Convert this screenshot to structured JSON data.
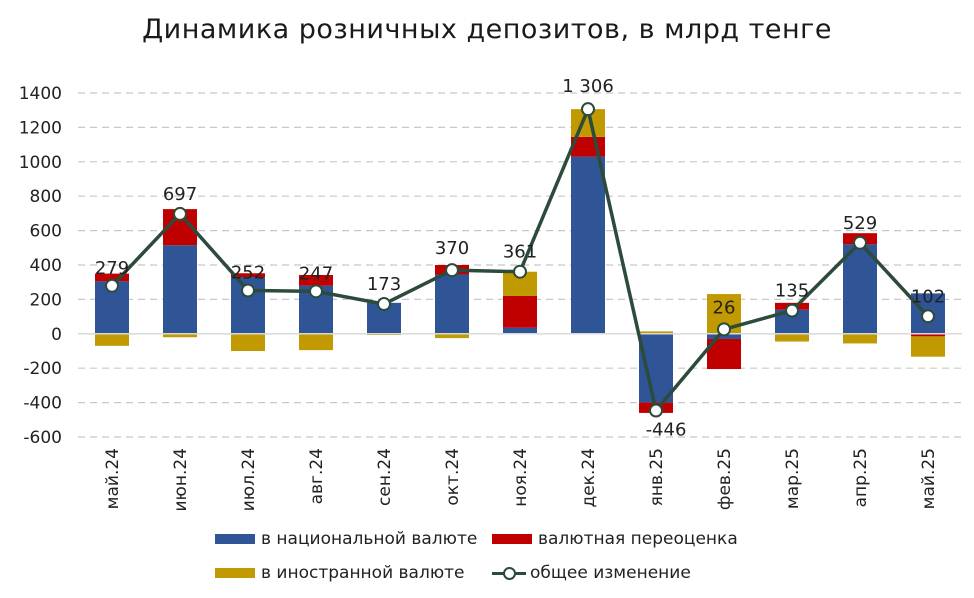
{
  "chart_data": {
    "type": "bar",
    "title": "Динамика розничных депозитов, в млрд тенге",
    "categories": [
      "май.24",
      "июн.24",
      "июл.24",
      "авг.24",
      "сен.24",
      "окт.24",
      "ноя.24",
      "дек.24",
      "янв.25",
      "фев.25",
      "мар.25",
      "апр.25",
      "май.25"
    ],
    "ylim": [
      -600,
      1400
    ],
    "yticks": [
      1400,
      1200,
      1000,
      800,
      600,
      400,
      200,
      0,
      -200,
      -400,
      -600
    ],
    "grid": true,
    "series": [
      {
        "name": "в национальной валюте",
        "color": "#2f5597",
        "kind": "bar",
        "values": [
          305,
          515,
          330,
          280,
          180,
          345,
          35,
          1030,
          -400,
          -30,
          140,
          520,
          235
        ]
      },
      {
        "name": "валютная переоценка",
        "color": "#c00000",
        "kind": "bar",
        "values": [
          45,
          210,
          22,
          62,
          0,
          55,
          185,
          115,
          -60,
          -175,
          40,
          65,
          -15
        ]
      },
      {
        "name": "в иностранной валюте",
        "color": "#c09a00",
        "kind": "bar",
        "values": [
          -70,
          -20,
          -100,
          -95,
          -7,
          -25,
          141,
          161,
          14,
          231,
          -45,
          -56,
          -118
        ]
      },
      {
        "name": "общее изменение",
        "color": "#2c4b3b",
        "kind": "line",
        "values": [
          279,
          697,
          252,
          247,
          173,
          370,
          361,
          1306,
          -446,
          26,
          135,
          529,
          102
        ],
        "labels": [
          "279",
          "697",
          "252",
          "247",
          "173",
          "370",
          "361",
          "1 306",
          "-446",
          "26",
          "135",
          "529",
          "102"
        ]
      }
    ],
    "legend": [
      "в национальной валюте",
      "валютная переоценка",
      "в иностранной валюте",
      "общее изменение"
    ],
    "legend_position": "bottom"
  }
}
